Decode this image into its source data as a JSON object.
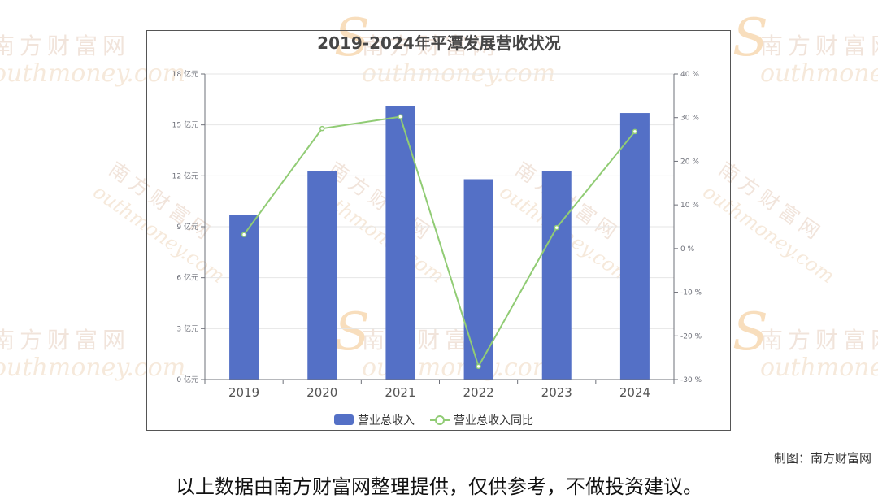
{
  "watermark": {
    "brand_cn": "南方财富网",
    "brand_en": "outhmoney.com",
    "brand_s": "S"
  },
  "chart_data": {
    "type": "bar",
    "title": "2019-2024年平潭发展营收状况",
    "categories": [
      "2019",
      "2020",
      "2021",
      "2022",
      "2023",
      "2024"
    ],
    "series": [
      {
        "name": "营业总收入",
        "type": "bar",
        "axis": "left",
        "color": "#5470c6",
        "values": [
          9.7,
          12.3,
          16.1,
          11.8,
          12.3,
          15.7
        ]
      },
      {
        "name": "营业总收入同比",
        "type": "line",
        "axis": "right",
        "color": "#91cc75",
        "values": [
          3.2,
          27.5,
          30.2,
          -27.0,
          4.8,
          26.8
        ]
      }
    ],
    "y_left": {
      "min": 0,
      "max": 18,
      "ticks": [
        0,
        3,
        6,
        9,
        12,
        15,
        18
      ],
      "unit": "亿元"
    },
    "y_right": {
      "min": -30,
      "max": 40,
      "ticks": [
        -30,
        -20,
        -10,
        0,
        10,
        20,
        30,
        40
      ],
      "unit": "%"
    },
    "grid": true,
    "legend_position": "bottom-center"
  },
  "footer": {
    "source": "制图：南方财富网",
    "disclaimer": "以上数据由南方财富网整理提供，仅供参考，不做投资建议。"
  }
}
